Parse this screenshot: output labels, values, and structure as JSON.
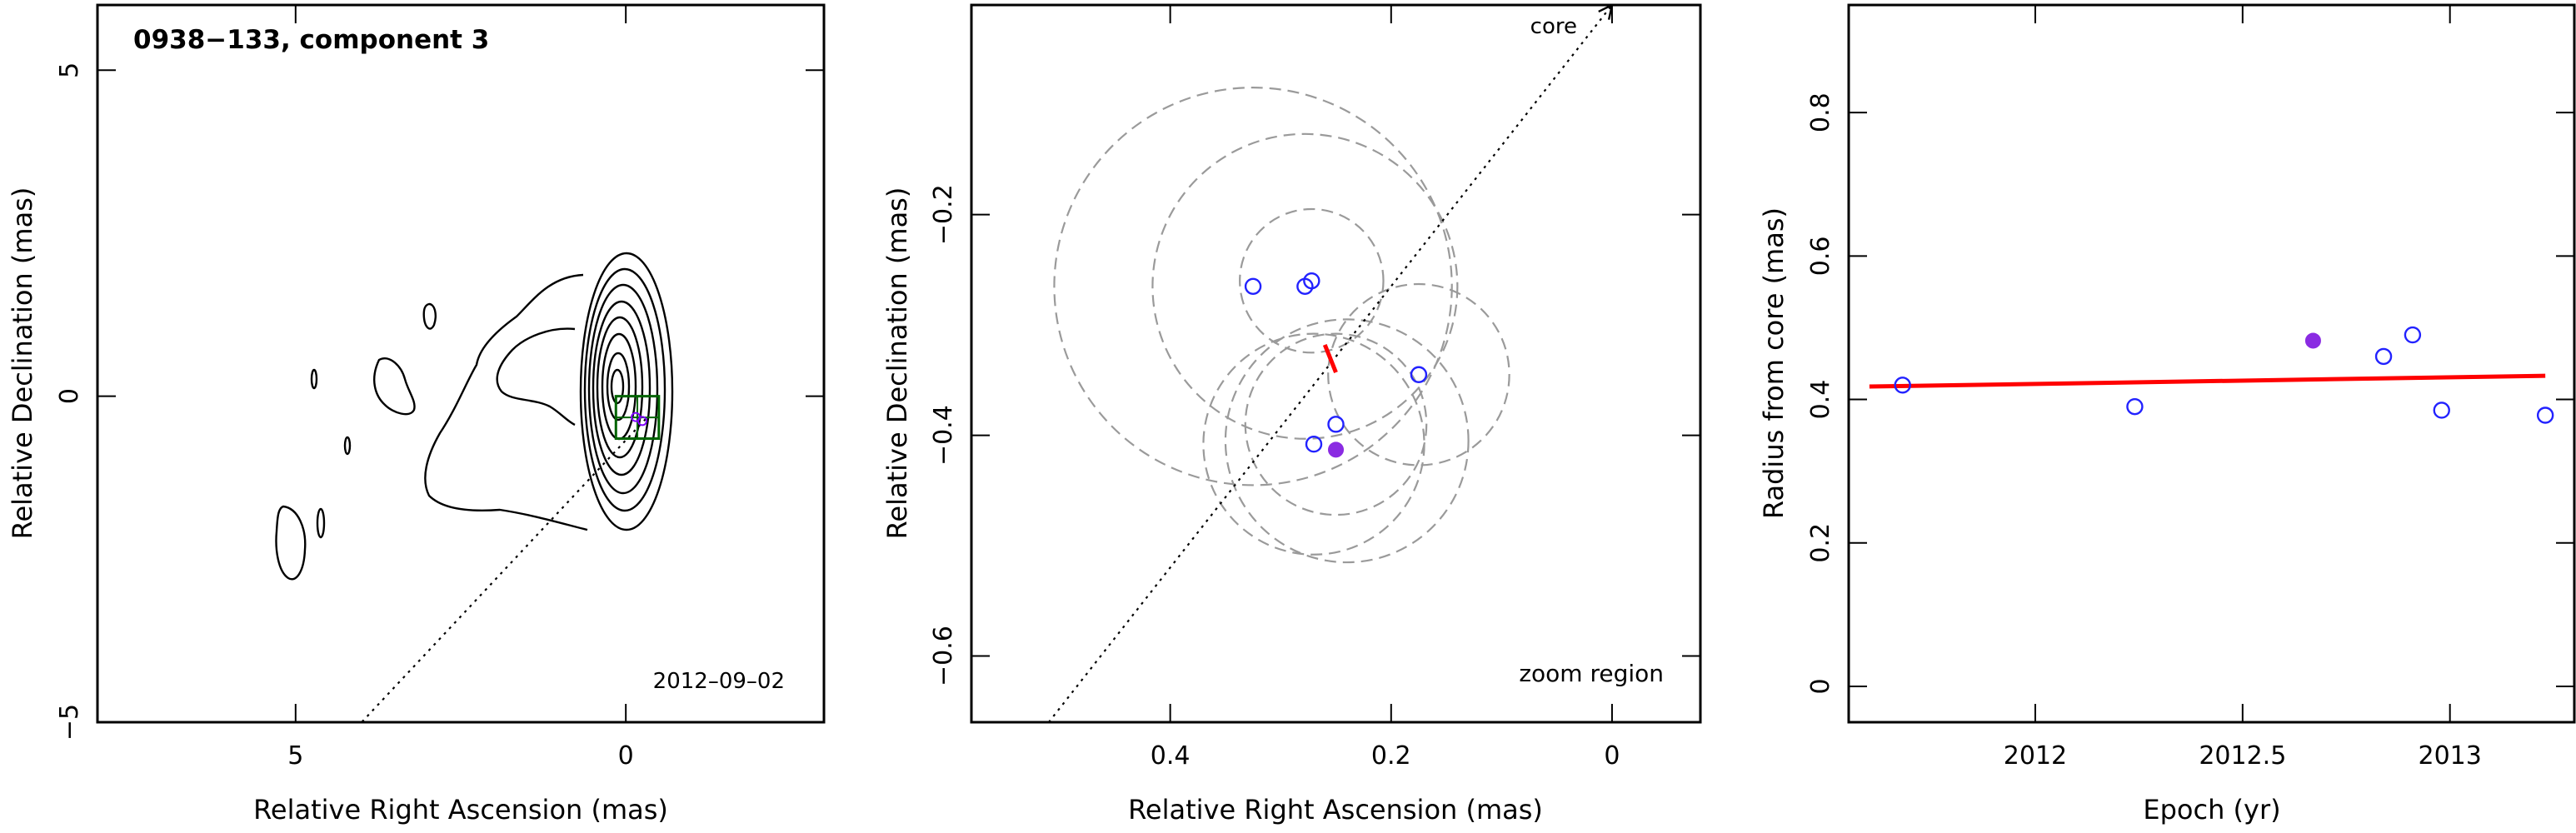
{
  "figure": {
    "panels": [
      {
        "id": "map",
        "title": "0938−133, component 3",
        "epoch_label": "2012–09–02",
        "xlabel": "Relative Right Ascension (mas)",
        "ylabel": "Relative Declination (mas)"
      },
      {
        "id": "zoom",
        "core_label": "core",
        "zoom_label": "zoom region",
        "xlabel": "Relative Right Ascension (mas)",
        "ylabel": "Relative Declination (mas)"
      },
      {
        "id": "radius",
        "xlabel": "Epoch (yr)",
        "ylabel": "Radius from core (mas)"
      }
    ]
  },
  "chart_data": [
    {
      "type": "contour",
      "xlim": [
        8.0,
        -3.0
      ],
      "ylim": [
        -5.0,
        6.0
      ],
      "x_reversed": true,
      "x_ticks": [
        5,
        0
      ],
      "x_tick_labels": [
        "5",
        "0"
      ],
      "y_ticks": [
        -5,
        0,
        5
      ],
      "y_tick_labels": [
        "−5",
        "0",
        "5"
      ],
      "core_direction_line": [
        [
          -0.3,
          -0.35
        ],
        [
          4.0,
          -5.0
        ]
      ],
      "zoom_box": {
        "x": [
          -0.5,
          0.15
        ],
        "y": [
          -0.65,
          0.0
        ]
      },
      "components_overlay": [
        [
          -0.25,
          -0.38
        ],
        [
          -0.15,
          -0.32
        ]
      ],
      "colors": {
        "contours": "#000000",
        "zoom_box": "#006400",
        "marker": "#7f00ff"
      }
    },
    {
      "type": "scatter",
      "xlim": [
        0.58,
        -0.08
      ],
      "ylim": [
        -0.66,
        -0.01
      ],
      "x_reversed": true,
      "x_ticks": [
        0.4,
        0.2,
        0
      ],
      "x_tick_labels": [
        "0.4",
        "0.2",
        "0"
      ],
      "y_ticks": [
        -0.2,
        -0.4,
        -0.6
      ],
      "y_tick_labels": [
        "−0.2",
        "−0.4",
        "−0.6"
      ],
      "series": [
        {
          "marker": "open-circle",
          "color": "#2222ff",
          "x": [
            0.325,
            0.278,
            0.272,
            0.175,
            0.25,
            0.27
          ],
          "y": [
            -0.265,
            -0.265,
            -0.26,
            -0.345,
            -0.39,
            -0.408
          ]
        },
        {
          "marker": "filled-circle",
          "color": "#8a2be2",
          "x": [
            0.25
          ],
          "y": [
            -0.413
          ]
        }
      ],
      "uncertainty_circles": [
        {
          "x": 0.325,
          "y": -0.265,
          "r": 0.18
        },
        {
          "x": 0.278,
          "y": -0.265,
          "r": 0.138
        },
        {
          "x": 0.272,
          "y": -0.26,
          "r": 0.065
        },
        {
          "x": 0.175,
          "y": -0.345,
          "r": 0.082
        },
        {
          "x": 0.25,
          "y": -0.39,
          "r": 0.082
        },
        {
          "x": 0.27,
          "y": -0.408,
          "r": 0.1
        },
        {
          "x": 0.24,
          "y": -0.405,
          "r": 0.11
        }
      ],
      "motion_vector": {
        "x": [
          0.26,
          0.25
        ],
        "y": [
          -0.318,
          -0.343
        ],
        "color": "#ff0000"
      },
      "core_line": {
        "x": [
          0.51,
          0.0
        ],
        "y": [
          -0.66,
          -0.01
        ]
      }
    },
    {
      "type": "scatter",
      "xlim": [
        2011.55,
        2013.3
      ],
      "ylim": [
        -0.05,
        0.95
      ],
      "x_ticks": [
        2012,
        2012.5,
        2013
      ],
      "x_tick_labels": [
        "2012",
        "2012.5",
        "2013"
      ],
      "y_ticks": [
        0,
        0.2,
        0.4,
        0.6,
        0.8
      ],
      "y_tick_labels": [
        "0",
        "0.2",
        "0.4",
        "0.6",
        "0.8"
      ],
      "series": [
        {
          "marker": "open-circle",
          "color": "#2222ff",
          "x": [
            2011.68,
            2012.24,
            2012.84,
            2012.91,
            2012.98,
            2013.23
          ],
          "y": [
            0.42,
            0.39,
            0.46,
            0.49,
            0.385,
            0.378
          ]
        },
        {
          "marker": "filled-circle",
          "color": "#8a2be2",
          "x": [
            2012.67
          ],
          "y": [
            0.482
          ]
        }
      ],
      "fit_line": {
        "x": [
          2011.6,
          2013.23
        ],
        "y": [
          0.418,
          0.433
        ],
        "color": "#ff0000"
      }
    }
  ]
}
